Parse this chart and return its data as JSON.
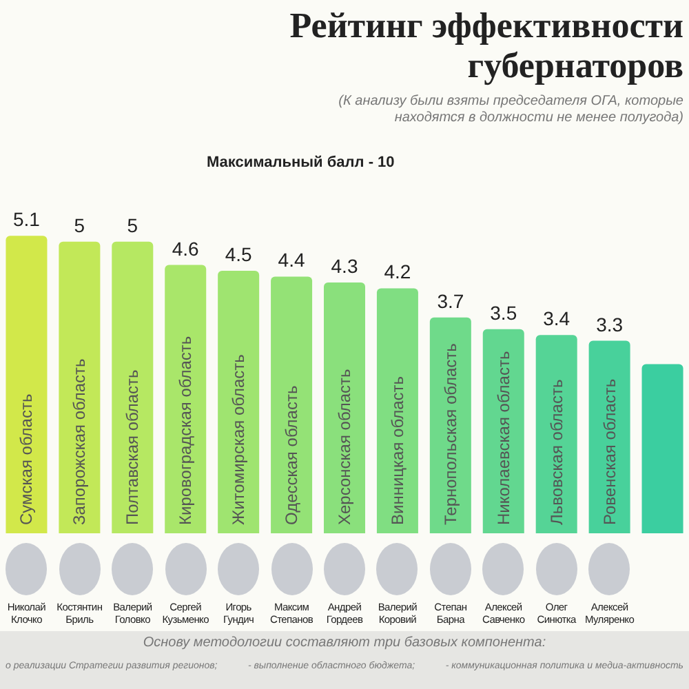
{
  "chart_data": {
    "type": "bar",
    "title": "Рейтинг эффективности губернаторов",
    "subtitle": "(К анализу были взяты председателя ОГА, которые находятся в должности не менее полугода)",
    "categories": [
      "Сумская область",
      "Запорожская область",
      "Полтавская область",
      "Кировоградская область",
      "Житомирская область",
      "Одесская область",
      "Херсонская область",
      "Винницкая область",
      "Тернопольская область",
      "Николаевская область",
      "Львовская область",
      "Ровенская область",
      null
    ],
    "values": [
      5.1,
      5,
      5,
      4.6,
      4.5,
      4.4,
      4.3,
      4.2,
      3.7,
      3.5,
      3.4,
      3.3,
      2.9
    ],
    "value_labels": [
      "5.1",
      "5",
      "5",
      "4.6",
      "4.5",
      "4.4",
      "4.3",
      "4.2",
      "3.7",
      "3.5",
      "3.4",
      "3.3",
      null
    ],
    "colors": [
      "#d2e84a",
      "#c2e858",
      "#b6e862",
      "#a9e66a",
      "#9fe470",
      "#94e276",
      "#8ae07c",
      "#80de82",
      "#6fda8a",
      "#62d790",
      "#55d496",
      "#48d19b",
      "#3bcea0"
    ],
    "tick_labels": "x",
    "annotations": [
      "Максимальный балл - 10",
      "Николай Клочко",
      "Костянтин Бриль",
      "Валерий Головко",
      "Сергей Кузьменко",
      "Игорь Гундич",
      "Максим Степанов",
      "Андрей Гордеев",
      "Валерий Коровий",
      "Степан Барна",
      "Алексей Савченко",
      "Олег Синютка",
      "Алексей Муляренко",
      "Основу методологии составляют три базовых компонента:",
      "о реализации Стратегии развития регионов;",
      "- выполнение областного бюджета;",
      "- коммуникационная политика и медиа-активность"
    ]
  }
}
